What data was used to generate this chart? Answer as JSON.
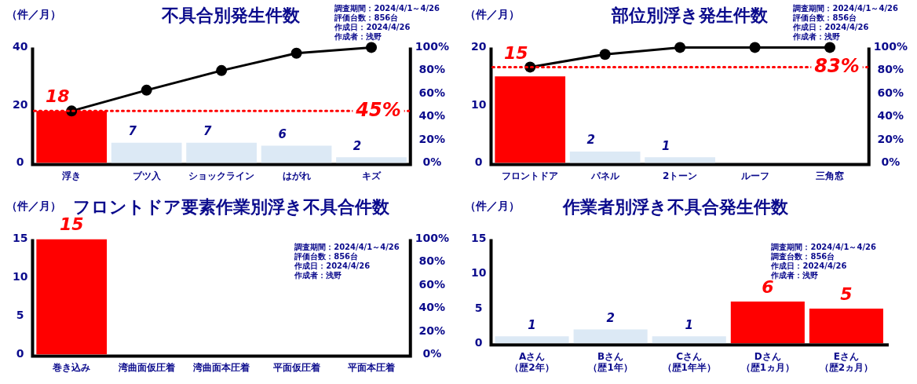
{
  "chart_data": [
    {
      "type": "bar",
      "title": "不具合別発生件数",
      "ylabel": "（件／月）",
      "categories": [
        "浮き",
        "ブツ入",
        "ショックライン",
        "はがれ",
        "キズ"
      ],
      "series": [
        {
          "colors": [
            "#ff0000",
            "#dce9f5",
            "#dce9f5",
            "#dce9f5",
            "#dce9f5"
          ],
          "values": [
            18,
            7,
            7,
            6,
            2
          ],
          "value_labels": [
            "18",
            "7",
            "7",
            "6",
            "2"
          ]
        },
        {
          "type": "line",
          "color": "#000000",
          "axis": "y2",
          "values": [
            45,
            63,
            80,
            95,
            100
          ]
        }
      ],
      "ylim": [
        0,
        40
      ],
      "yticks": [
        0,
        20,
        40
      ],
      "y2lim": [
        0,
        100
      ],
      "y2ticks": [
        {
          "value": 0,
          "label": "0%"
        },
        {
          "value": 20,
          "label": "20%"
        },
        {
          "value": 40,
          "label": "40%"
        },
        {
          "value": 60,
          "label": "60%"
        },
        {
          "value": 80,
          "label": "80%"
        },
        {
          "value": 100,
          "label": "100%"
        }
      ],
      "ref_lines": [
        {
          "axis": "y2",
          "value": 45,
          "label": "45%",
          "color": "#ff0000",
          "line_style": "dotted"
        }
      ],
      "marker": "circle",
      "grid": false,
      "legend": false,
      "annotations": [
        "調査期間：2024/4/1～4/26",
        "評価台数：856台",
        "作成日：2024/4/26",
        "作成者：浅野"
      ]
    },
    {
      "type": "bar",
      "title": "部位別浮き発生件数",
      "ylabel": "（件／月）",
      "categories": [
        "フロントドア",
        "パネル",
        "2トーン",
        "ルーフ",
        "三角窓"
      ],
      "series": [
        {
          "colors": [
            "#ff0000",
            "#dce9f5",
            "#dce9f5",
            "#dce9f5",
            "#dce9f5"
          ],
          "values": [
            15,
            2,
            1,
            0,
            0
          ],
          "value_labels": [
            "15",
            "2",
            "1",
            null,
            null
          ]
        },
        {
          "type": "line",
          "color": "#000000",
          "axis": "y2",
          "values": [
            83,
            94,
            100,
            100,
            100
          ]
        }
      ],
      "ylim": [
        0,
        20
      ],
      "yticks": [
        0,
        10,
        20
      ],
      "y2lim": [
        0,
        100
      ],
      "y2ticks": [
        {
          "value": 0,
          "label": "0%"
        },
        {
          "value": 20,
          "label": "20%"
        },
        {
          "value": 40,
          "label": "40%"
        },
        {
          "value": 60,
          "label": "60%"
        },
        {
          "value": 80,
          "label": "80%"
        },
        {
          "value": 100,
          "label": "100%"
        }
      ],
      "ref_lines": [
        {
          "axis": "y2",
          "value": 83,
          "label": "83%",
          "color": "#ff0000",
          "line_style": "dotted"
        }
      ],
      "marker": "circle",
      "grid": false,
      "legend": false,
      "annotations": [
        "調査期間：2024/4/1～4/26",
        "評価台数：856台",
        "作成日：2024/4/26",
        "作成者：浅野"
      ]
    },
    {
      "type": "bar",
      "title": "フロントドア要素作業別浮き不具合件数",
      "ylabel": "（件／月）",
      "categories": [
        "巻き込み",
        "湾曲面仮圧着",
        "湾曲面本圧着",
        "平面仮圧着",
        "平面本圧着"
      ],
      "series": [
        {
          "colors": [
            "#ff0000",
            "#dce9f5",
            "#dce9f5",
            "#dce9f5",
            "#dce9f5"
          ],
          "values": [
            15,
            0,
            0,
            0,
            0
          ],
          "value_labels": [
            "15",
            null,
            null,
            null,
            null
          ]
        }
      ],
      "ylim": [
        0,
        15
      ],
      "yticks": [
        0,
        5,
        10,
        15
      ],
      "y2lim": [
        0,
        100
      ],
      "y2ticks": [
        {
          "value": 0,
          "label": "0%"
        },
        {
          "value": 20,
          "label": "20%"
        },
        {
          "value": 40,
          "label": "40%"
        },
        {
          "value": 60,
          "label": "60%"
        },
        {
          "value": 80,
          "label": "80%"
        },
        {
          "value": 100,
          "label": "100%"
        }
      ],
      "grid": false,
      "legend": false,
      "annotations": [
        "調査期間：2024/4/1～4/26",
        "評価台数：856台",
        "作成日：2024/4/26",
        "作成者：浅野"
      ]
    },
    {
      "type": "bar",
      "title": "作業者別浮き不具合発生件数",
      "ylabel": "（件／月）",
      "categories": [
        "Aさん（歴2年）",
        "Bさん（歴1年）",
        "Cさん（歴1年半）",
        "Dさん（歴1ヵ月）",
        "Eさん（歴2ヵ月）"
      ],
      "series": [
        {
          "colors": [
            "#dce9f5",
            "#dce9f5",
            "#dce9f5",
            "#ff0000",
            "#ff0000"
          ],
          "values": [
            1,
            2,
            1,
            6,
            5
          ],
          "value_labels": [
            "1",
            "2",
            "1",
            "6",
            "5"
          ]
        }
      ],
      "ylim": [
        0,
        15
      ],
      "yticks": [
        0,
        5,
        10,
        15
      ],
      "grid": false,
      "legend": false,
      "annotations": [
        "調査期間：2024/4/1～4/26",
        "調査台数：856台",
        "作成日：2024/4/26",
        "作成者：浅野"
      ]
    }
  ]
}
